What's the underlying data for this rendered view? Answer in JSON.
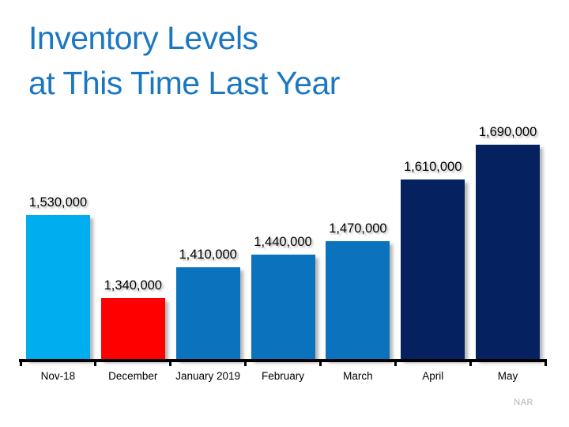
{
  "title": {
    "line1": "Inventory Levels",
    "line2": "at This Time Last Year"
  },
  "source_label": "NAR",
  "colors": {
    "title": "#1C77C3",
    "axis": "#000000",
    "value_label": "#000000",
    "category_label": "#000000",
    "source": "#B0B0B0",
    "background": "#FFFFFF"
  },
  "chart_data": {
    "type": "bar",
    "title": "Inventory Levels at This Time Last Year",
    "categories": [
      "Nov-18",
      "December",
      "January 2019",
      "February",
      "March",
      "April",
      "May"
    ],
    "values": [
      1530000,
      1340000,
      1410000,
      1440000,
      1470000,
      1610000,
      1690000
    ],
    "value_labels": [
      "1,530,000",
      "1,340,000",
      "1,410,000",
      "1,440,000",
      "1,470,000",
      "1,610,000",
      "1,690,000"
    ],
    "bar_colors": [
      "#00AEEF",
      "#FF0000",
      "#0B72BE",
      "#0B72BE",
      "#0B72BE",
      "#062160",
      "#062160"
    ],
    "xlabel": "",
    "ylabel": "",
    "ylim": [
      1200000,
      1700000
    ],
    "grid": false,
    "legend": false,
    "source": "NAR"
  }
}
